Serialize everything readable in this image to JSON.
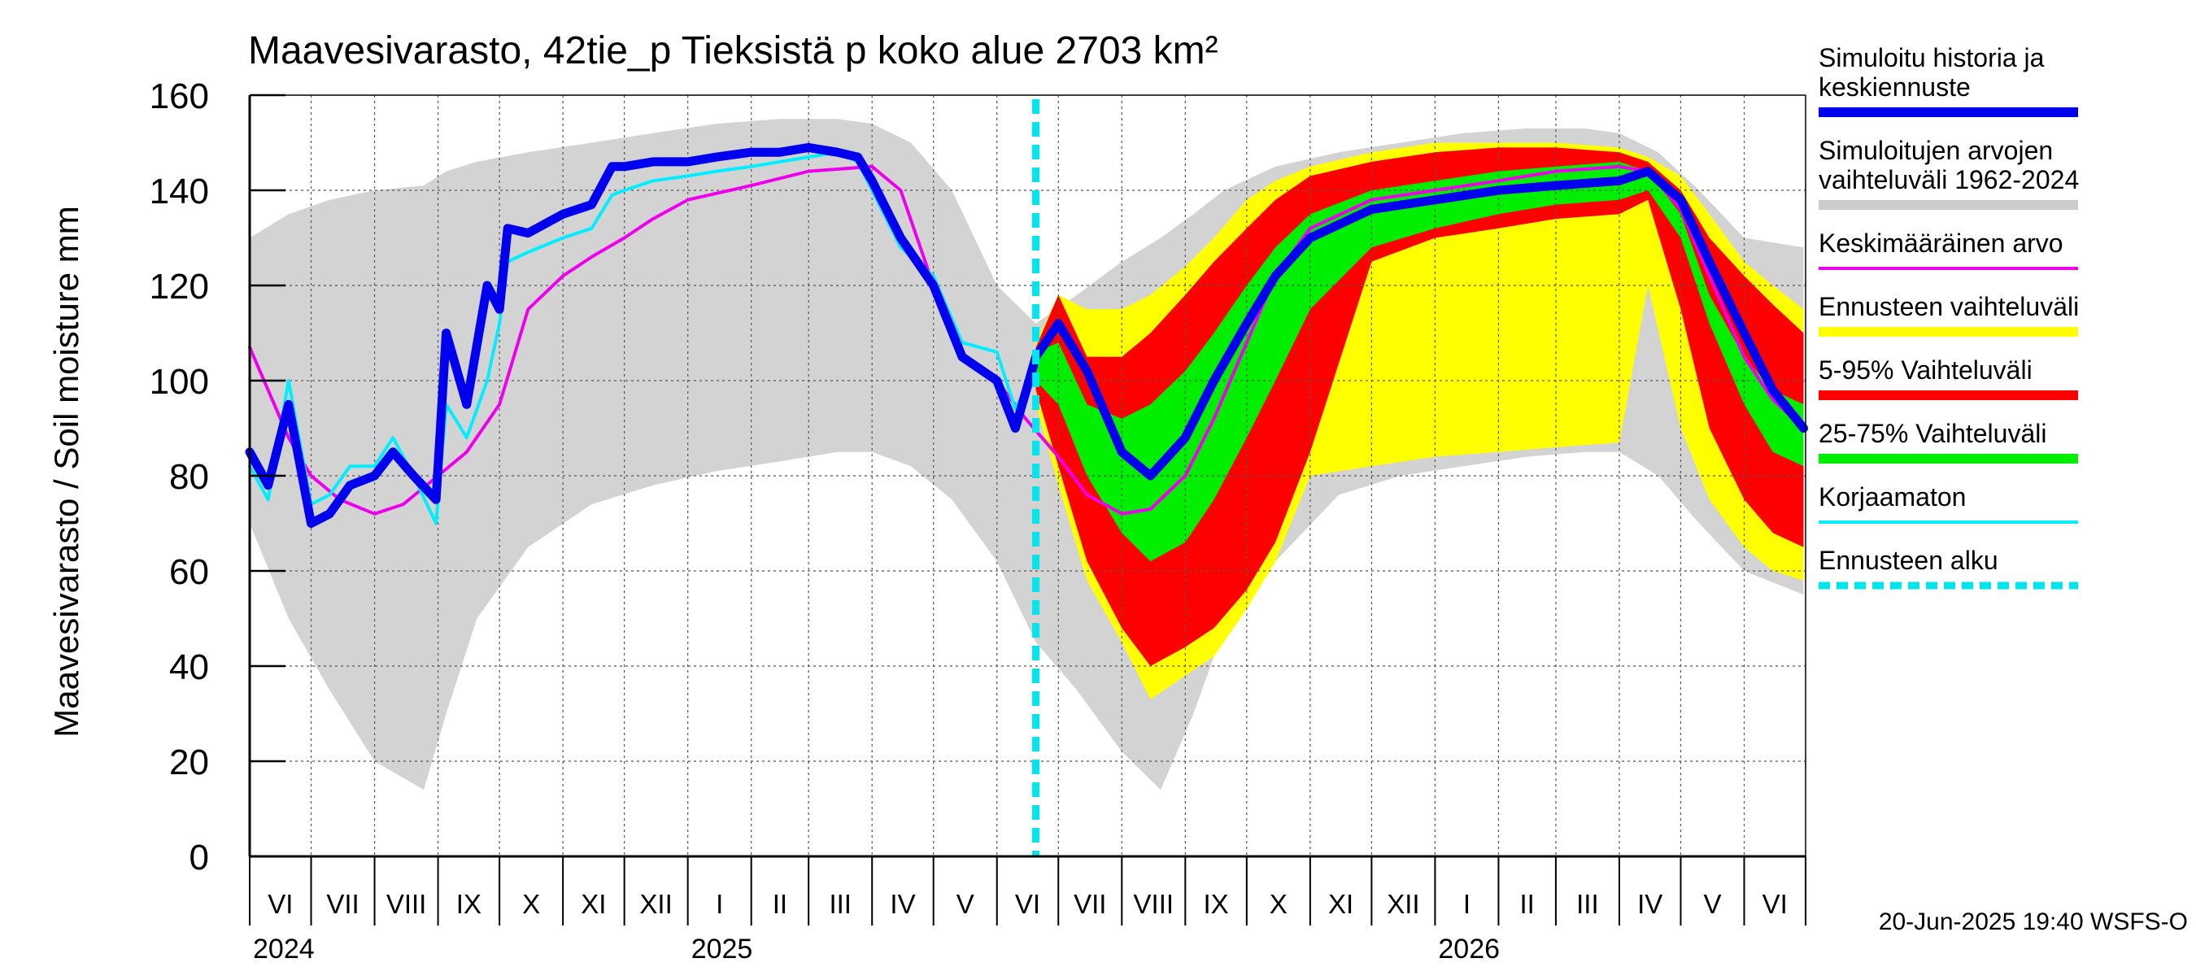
{
  "chart_data": {
    "type": "area",
    "title": "Maavesivarasto, 42tie_p Tieksistä p koko alue 2703 km²",
    "ylabel": "Maavesivarasto / Soil moisture   mm",
    "xlabel": "",
    "ylim": [
      0,
      160
    ],
    "yticks": [
      0,
      20,
      40,
      60,
      80,
      100,
      120,
      140,
      160
    ],
    "xlim": [
      "2024-06-01",
      "2026-06-30"
    ],
    "month_labels": [
      "VI",
      "VII",
      "VIII",
      "IX",
      "X",
      "XI",
      "XII",
      "I",
      "II",
      "III",
      "IV",
      "V",
      "VI",
      "VII",
      "VIII",
      "IX",
      "X",
      "XI",
      "XII",
      "I",
      "II",
      "III",
      "IV",
      "V",
      "VI"
    ],
    "year_labels": [
      "2024",
      "2025",
      "2026"
    ],
    "grid": true,
    "legend_placement": "right",
    "forecast_start": "2025-06-20",
    "footer": "20-Jun-2025 19:40 WSFS-O",
    "legend": [
      {
        "label": "Simuloitu historia ja keskiennuste",
        "color": "#0000ee",
        "style": "thick"
      },
      {
        "label": "Simuloitujen arvojen vaihteluväli 1962-2024",
        "color": "#cccccc",
        "style": "band"
      },
      {
        "label": "Keskimääräinen arvo",
        "color": "#ee00ee",
        "style": "line"
      },
      {
        "label": "Ennusteen vaihteluväli",
        "color": "#ffff00",
        "style": "band"
      },
      {
        "label": "5-95% Vaihteluväli",
        "color": "#ff0000",
        "style": "band"
      },
      {
        "label": "25-75% Vaihteluväli",
        "color": "#00ee00",
        "style": "band"
      },
      {
        "label": "Korjaamaton",
        "color": "#00eeff",
        "style": "line"
      },
      {
        "label": "Ennusteen alku",
        "color": "#00e5ee",
        "style": "dashed"
      }
    ],
    "series": [
      {
        "name": "Simuloitujen arvojen vaihteluväli 1962-2024",
        "kind": "band",
        "x": [
          "2024-06-01",
          "2024-06-20",
          "2024-07-10",
          "2024-08-01",
          "2024-08-25",
          "2024-09-05",
          "2024-09-20",
          "2024-10-15",
          "2024-11-15",
          "2024-12-15",
          "2025-01-15",
          "2025-02-15",
          "2025-03-15",
          "2025-04-01",
          "2025-04-20",
          "2025-05-10",
          "2025-06-01",
          "2025-06-20",
          "2025-07-10",
          "2025-08-01",
          "2025-08-20",
          "2025-09-05",
          "2025-09-20",
          "2025-10-15",
          "2025-11-15",
          "2025-12-15",
          "2026-01-15",
          "2026-02-15",
          "2026-03-15",
          "2026-04-01",
          "2026-04-20",
          "2026-05-10",
          "2026-06-01",
          "2026-06-30"
        ],
        "low": [
          70,
          50,
          35,
          20,
          14,
          30,
          50,
          65,
          74,
          78,
          81,
          83,
          85,
          85,
          82,
          75,
          62,
          45,
          35,
          22,
          14,
          30,
          48,
          62,
          76,
          80,
          82,
          84,
          85,
          85,
          80,
          70,
          60,
          55
        ],
        "high": [
          130,
          135,
          138,
          140,
          141,
          144,
          146,
          148,
          150,
          152,
          154,
          155,
          155,
          154,
          150,
          140,
          120,
          112,
          118,
          125,
          130,
          135,
          140,
          145,
          148,
          150,
          152,
          153,
          153,
          152,
          148,
          140,
          130,
          128
        ]
      },
      {
        "name": "Ennusteen vaihteluväli",
        "kind": "band",
        "x": [
          "2025-06-20",
          "2025-07-01",
          "2025-07-15",
          "2025-08-01",
          "2025-08-15",
          "2025-09-01",
          "2025-09-15",
          "2025-10-01",
          "2025-10-15",
          "2025-11-01",
          "2025-12-01",
          "2026-01-01",
          "2026-02-01",
          "2026-03-01",
          "2026-04-01",
          "2026-04-15",
          "2026-05-01",
          "2026-05-15",
          "2026-06-01",
          "2026-06-15",
          "2026-06-30"
        ],
        "low": [
          95,
          78,
          58,
          45,
          33,
          38,
          42,
          52,
          62,
          80,
          82,
          84,
          85,
          86,
          87,
          120,
          90,
          75,
          65,
          60,
          58
        ],
        "high": [
          108,
          118,
          115,
          115,
          118,
          124,
          130,
          138,
          142,
          145,
          148,
          150,
          150,
          150,
          149,
          147,
          143,
          135,
          125,
          120,
          115
        ]
      },
      {
        "name": "5-95% Vaihteluväli",
        "kind": "band",
        "x": [
          "2025-06-20",
          "2025-07-01",
          "2025-07-15",
          "2025-08-01",
          "2025-08-15",
          "2025-09-01",
          "2025-09-15",
          "2025-10-01",
          "2025-10-15",
          "2025-11-01",
          "2025-12-01",
          "2026-01-01",
          "2026-02-01",
          "2026-03-01",
          "2026-04-01",
          "2026-04-15",
          "2026-05-01",
          "2026-05-15",
          "2026-06-01",
          "2026-06-15",
          "2026-06-30"
        ],
        "low": [
          98,
          82,
          62,
          48,
          40,
          44,
          48,
          56,
          66,
          85,
          125,
          130,
          132,
          134,
          135,
          138,
          115,
          90,
          75,
          68,
          65
        ],
        "high": [
          107,
          118,
          105,
          105,
          110,
          118,
          125,
          132,
          138,
          143,
          146,
          148,
          149,
          149,
          148,
          146,
          140,
          130,
          122,
          116,
          110
        ]
      },
      {
        "name": "25-75% Vaihteluväli",
        "kind": "band",
        "x": [
          "2025-06-20",
          "2025-07-01",
          "2025-07-15",
          "2025-08-01",
          "2025-08-15",
          "2025-09-01",
          "2025-09-15",
          "2025-10-01",
          "2025-10-15",
          "2025-11-01",
          "2025-12-01",
          "2026-01-01",
          "2026-02-01",
          "2026-03-01",
          "2026-04-01",
          "2026-04-15",
          "2026-05-01",
          "2026-05-15",
          "2026-06-01",
          "2026-06-15",
          "2026-06-30"
        ],
        "low": [
          100,
          95,
          80,
          68,
          62,
          66,
          75,
          88,
          100,
          115,
          128,
          132,
          135,
          137,
          138,
          140,
          130,
          112,
          95,
          85,
          82
        ],
        "high": [
          106,
          108,
          95,
          92,
          95,
          102,
          110,
          120,
          128,
          135,
          140,
          142,
          144,
          145,
          146,
          144,
          135,
          118,
          105,
          98,
          95
        ]
      },
      {
        "name": "Simuloitu historia ja keskiennuste",
        "kind": "line",
        "x": [
          "2024-06-01",
          "2024-06-10",
          "2024-06-20",
          "2024-07-01",
          "2024-07-10",
          "2024-07-20",
          "2024-08-01",
          "2024-08-10",
          "2024-08-20",
          "2024-08-31",
          "2024-09-05",
          "2024-09-15",
          "2024-09-25",
          "2024-10-01",
          "2024-10-05",
          "2024-10-15",
          "2024-11-01",
          "2024-11-15",
          "2024-11-25",
          "2024-12-01",
          "2024-12-15",
          "2025-01-01",
          "2025-01-15",
          "2025-02-01",
          "2025-02-15",
          "2025-03-01",
          "2025-03-15",
          "2025-03-25",
          "2025-04-01",
          "2025-04-15",
          "2025-05-01",
          "2025-05-15",
          "2025-06-01",
          "2025-06-10",
          "2025-06-20",
          "2025-07-01",
          "2025-07-15",
          "2025-08-01",
          "2025-08-15",
          "2025-09-01",
          "2025-09-15",
          "2025-10-01",
          "2025-10-15",
          "2025-11-01",
          "2025-12-01",
          "2026-01-01",
          "2026-02-01",
          "2026-03-01",
          "2026-04-01",
          "2026-04-15",
          "2026-05-01",
          "2026-05-15",
          "2026-06-01",
          "2026-06-15",
          "2026-06-30"
        ],
        "values": [
          85,
          78,
          95,
          70,
          72,
          78,
          80,
          85,
          80,
          75,
          110,
          95,
          120,
          115,
          132,
          131,
          135,
          137,
          145,
          145,
          146,
          146,
          147,
          148,
          148,
          149,
          148,
          147,
          142,
          130,
          120,
          105,
          100,
          90,
          105,
          112,
          102,
          85,
          80,
          88,
          100,
          112,
          122,
          130,
          136,
          138,
          140,
          141,
          142,
          144,
          138,
          125,
          110,
          98,
          90
        ]
      },
      {
        "name": "Korjaamaton",
        "kind": "line",
        "x": [
          "2024-06-01",
          "2024-06-10",
          "2024-06-20",
          "2024-07-01",
          "2024-07-10",
          "2024-07-20",
          "2024-08-01",
          "2024-08-10",
          "2024-08-20",
          "2024-08-31",
          "2024-09-05",
          "2024-09-15",
          "2024-09-25",
          "2024-10-01",
          "2024-10-05",
          "2024-10-15",
          "2024-11-01",
          "2024-11-15",
          "2024-11-25",
          "2024-12-01",
          "2024-12-15",
          "2025-01-01",
          "2025-01-15",
          "2025-02-01",
          "2025-02-15",
          "2025-03-01",
          "2025-03-15",
          "2025-03-25",
          "2025-04-01",
          "2025-04-15",
          "2025-05-01",
          "2025-05-15",
          "2025-06-01",
          "2025-06-10",
          "2025-06-20"
        ],
        "values": [
          82,
          75,
          100,
          74,
          76,
          82,
          82,
          88,
          80,
          70,
          95,
          88,
          100,
          112,
          125,
          127,
          130,
          132,
          139,
          140,
          142,
          143,
          144,
          145,
          146,
          147,
          148,
          146,
          140,
          128,
          122,
          108,
          106,
          94,
          103
        ]
      },
      {
        "name": "Keskimääräinen arvo",
        "kind": "line",
        "x": [
          "2024-06-01",
          "2024-06-10",
          "2024-06-20",
          "2024-07-01",
          "2024-07-15",
          "2024-08-01",
          "2024-08-15",
          "2024-09-01",
          "2024-09-15",
          "2024-10-01",
          "2024-10-15",
          "2024-11-01",
          "2024-11-15",
          "2024-12-01",
          "2024-12-15",
          "2025-01-01",
          "2025-02-01",
          "2025-03-01",
          "2025-04-01",
          "2025-04-15",
          "2025-05-01",
          "2025-05-15",
          "2025-06-01",
          "2025-06-15",
          "2025-07-01",
          "2025-07-15",
          "2025-08-01",
          "2025-08-15",
          "2025-09-01",
          "2025-09-15",
          "2025-10-01",
          "2025-10-15",
          "2025-11-01",
          "2025-12-01",
          "2026-01-01",
          "2026-02-01",
          "2026-03-01",
          "2026-04-01",
          "2026-04-15",
          "2026-05-01",
          "2026-05-15",
          "2026-06-01",
          "2026-06-15",
          "2026-06-30"
        ],
        "values": [
          107,
          98,
          88,
          80,
          75,
          72,
          74,
          80,
          85,
          95,
          115,
          122,
          126,
          130,
          134,
          138,
          141,
          144,
          145,
          140,
          120,
          105,
          100,
          92,
          84,
          76,
          72,
          73,
          80,
          92,
          108,
          122,
          132,
          138,
          140,
          142,
          144,
          145,
          144,
          136,
          122,
          105,
          96,
          90
        ]
      }
    ]
  }
}
